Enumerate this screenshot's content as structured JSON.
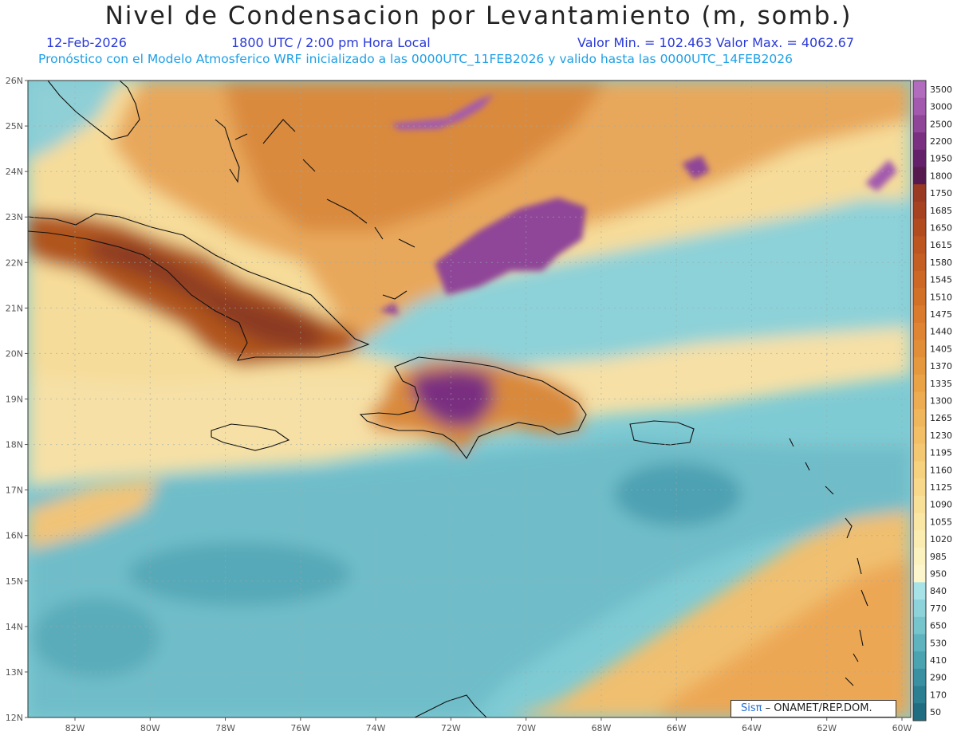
{
  "header": {
    "title": "Nivel de Condensacion por Levantamiento (m, somb.)",
    "date": "12-Feb-2026",
    "time": "1800 UTC / 2:00 pm Hora Local",
    "minmax": "Valor Min. = 102.463   Valor Max. = 4062.67",
    "model_info": "Pronóstico con el Modelo Atmosferico WRF inicializado a las 0000UTC_11FEB2026 y valido hasta las  0000UTC_14FEB2026"
  },
  "map": {
    "lat_labels": [
      "26N",
      "25N",
      "24N",
      "23N",
      "22N",
      "21N",
      "20N",
      "19N",
      "18N",
      "17N",
      "16N",
      "15N",
      "14N",
      "13N",
      "12N"
    ],
    "lon_labels": [
      "82W",
      "80W",
      "78W",
      "76W",
      "74W",
      "72W",
      "70W",
      "68W",
      "66W",
      "64W",
      "62W",
      "60W"
    ],
    "features": [
      "Cuba",
      "Jamaica",
      "Hispaniola",
      "Puerto Rico",
      "Bahamas",
      "Lesser Antilles"
    ]
  },
  "colorbar": {
    "labels": [
      "3500",
      "3000",
      "2500",
      "2200",
      "1950",
      "1800",
      "1750",
      "1685",
      "1650",
      "1615",
      "1580",
      "1545",
      "1510",
      "1475",
      "1440",
      "1405",
      "1370",
      "1335",
      "1300",
      "1265",
      "1230",
      "1195",
      "1160",
      "1125",
      "1090",
      "1055",
      "1020",
      "985",
      "950",
      "840",
      "770",
      "650",
      "530",
      "410",
      "290",
      "170",
      "50"
    ],
    "colors": [
      "#b26cbd",
      "#a35aae",
      "#8f4598",
      "#7a2f80",
      "#65206b",
      "#561a4f",
      "#9a3a22",
      "#a6421f",
      "#b24c1f",
      "#bd5520",
      "#c55e22",
      "#cc6725",
      "#d37028",
      "#d97a2c",
      "#de8432",
      "#e28e38",
      "#e6983f",
      "#eaa247",
      "#edac51",
      "#f0b65b",
      "#f2bf66",
      "#f4c872",
      "#f6d17e",
      "#f8d98b",
      "#f9e098",
      "#fae7a5",
      "#fbedb2",
      "#fcf2bf",
      "#fdf6cc",
      "#a6e2e6",
      "#8ed3da",
      "#76c4cc",
      "#5fb3be",
      "#4ba2b0",
      "#3a90a1",
      "#2c7e91",
      "#206c80"
    ]
  },
  "credit": {
    "brand": "Sisπ",
    "org": "– ONAMET/REP.DOM."
  }
}
